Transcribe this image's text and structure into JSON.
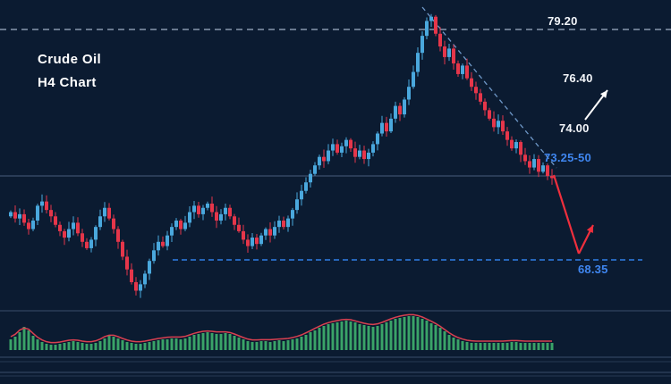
{
  "title": {
    "line1": "Crude Oil",
    "line2": "H4 Chart"
  },
  "annotations": {
    "resistance": {
      "label": "79.20",
      "color": "#f2f5f9"
    },
    "upside_target": {
      "label": "76.40",
      "color": "#f2f5f9"
    },
    "mid_level": {
      "label": "74.00",
      "color": "#f2f5f9"
    },
    "breakdown_zone": {
      "label": "73.25-50",
      "color": "#3f86f0"
    },
    "support": {
      "label": "68.35",
      "color": "#3f86f0"
    }
  },
  "colors": {
    "background": "#0b1b31",
    "bull_candle": "#4aa8dd",
    "bear_candle": "#e5364a",
    "histogram": "#3aa368",
    "signal_line": "#d84050",
    "resistance_line": "#9fb0c6",
    "mid_line": "#4a5d7d",
    "support_line": "#2f7fe8",
    "trendline": "#6f98c8",
    "bear_arrow": "#ef2f3d",
    "bull_arrow": "#ffffff",
    "separator": "#3a4c6b",
    "separator_dim": "#273852"
  },
  "chart_data": {
    "type": "candlestick",
    "symbol": "Crude Oil",
    "timeframe": "H4",
    "legend_position": "top-left",
    "grid": false,
    "levels": [
      {
        "name": "resistance",
        "label": "79.20",
        "price": 79.2,
        "style": "dashed"
      },
      {
        "name": "breakdown_zone",
        "label": "73.25-50",
        "price_low": 73.25,
        "price_high": 73.5,
        "style": "solid"
      },
      {
        "name": "support",
        "label": "68.35",
        "price": 68.35,
        "style": "dashed"
      }
    ],
    "projection": {
      "bearish_path": "break of 73.25-50 down to 68.35 then bounce",
      "bullish_alt": "recovery toward 76.40 above 74.00"
    },
    "closes": [
      70.6,
      70.3,
      70.5,
      70.1,
      69.8,
      70.2,
      70.9,
      71.1,
      70.7,
      70.4,
      70.0,
      69.7,
      69.4,
      69.8,
      70.1,
      69.6,
      69.2,
      68.9,
      69.3,
      69.9,
      70.4,
      70.8,
      70.3,
      69.8,
      69.2,
      68.5,
      67.9,
      67.3,
      66.9,
      67.2,
      67.7,
      68.3,
      68.8,
      69.2,
      69.0,
      69.5,
      69.9,
      70.2,
      69.8,
      70.1,
      70.6,
      70.9,
      70.5,
      70.8,
      71.0,
      70.6,
      70.2,
      70.5,
      70.8,
      70.4,
      70.0,
      69.7,
      69.3,
      69.0,
      69.4,
      69.1,
      69.5,
      69.8,
      69.5,
      69.9,
      70.2,
      69.9,
      70.3,
      70.7,
      71.2,
      71.6,
      72.0,
      72.4,
      72.8,
      73.2,
      73.0,
      73.5,
      73.8,
      73.4,
      73.7,
      74.0,
      73.6,
      73.2,
      73.5,
      73.1,
      73.4,
      73.8,
      74.3,
      74.8,
      74.4,
      75.0,
      75.6,
      75.2,
      75.9,
      76.5,
      77.2,
      78.1,
      78.9,
      79.6,
      79.8,
      79.0,
      78.4,
      77.9,
      78.3,
      77.6,
      77.1,
      77.5,
      76.9,
      76.5,
      76.2,
      75.8,
      75.4,
      75.0,
      74.6,
      74.9,
      74.4,
      74.0,
      73.6,
      73.9,
      73.3,
      73.0,
      72.7,
      73.1,
      72.5,
      72.8,
      72.3,
      72.2
    ],
    "indicator": {
      "type": "histogram_with_signal",
      "values": [
        12,
        15,
        20,
        26,
        22,
        16,
        12,
        9,
        7,
        6,
        6,
        7,
        8,
        9,
        10,
        9,
        8,
        7,
        7,
        8,
        10,
        13,
        16,
        15,
        13,
        11,
        9,
        8,
        7,
        7,
        8,
        9,
        10,
        11,
        12,
        12,
        13,
        13,
        12,
        13,
        15,
        17,
        18,
        19,
        20,
        19,
        18,
        18,
        19,
        18,
        16,
        14,
        12,
        10,
        9,
        9,
        10,
        10,
        9,
        10,
        11,
        10,
        11,
        12,
        13,
        15,
        17,
        20,
        22,
        25,
        27,
        29,
        30,
        31,
        32,
        33,
        32,
        31,
        29,
        28,
        27,
        26,
        27,
        29,
        31,
        33,
        35,
        36,
        37,
        38,
        38,
        37,
        35,
        33,
        30,
        28,
        25,
        21,
        17,
        14,
        12,
        10,
        9,
        8,
        8,
        8,
        8,
        8,
        8,
        8,
        8,
        8,
        9,
        9,
        8,
        8,
        8,
        8,
        8,
        8,
        8,
        8
      ]
    }
  }
}
